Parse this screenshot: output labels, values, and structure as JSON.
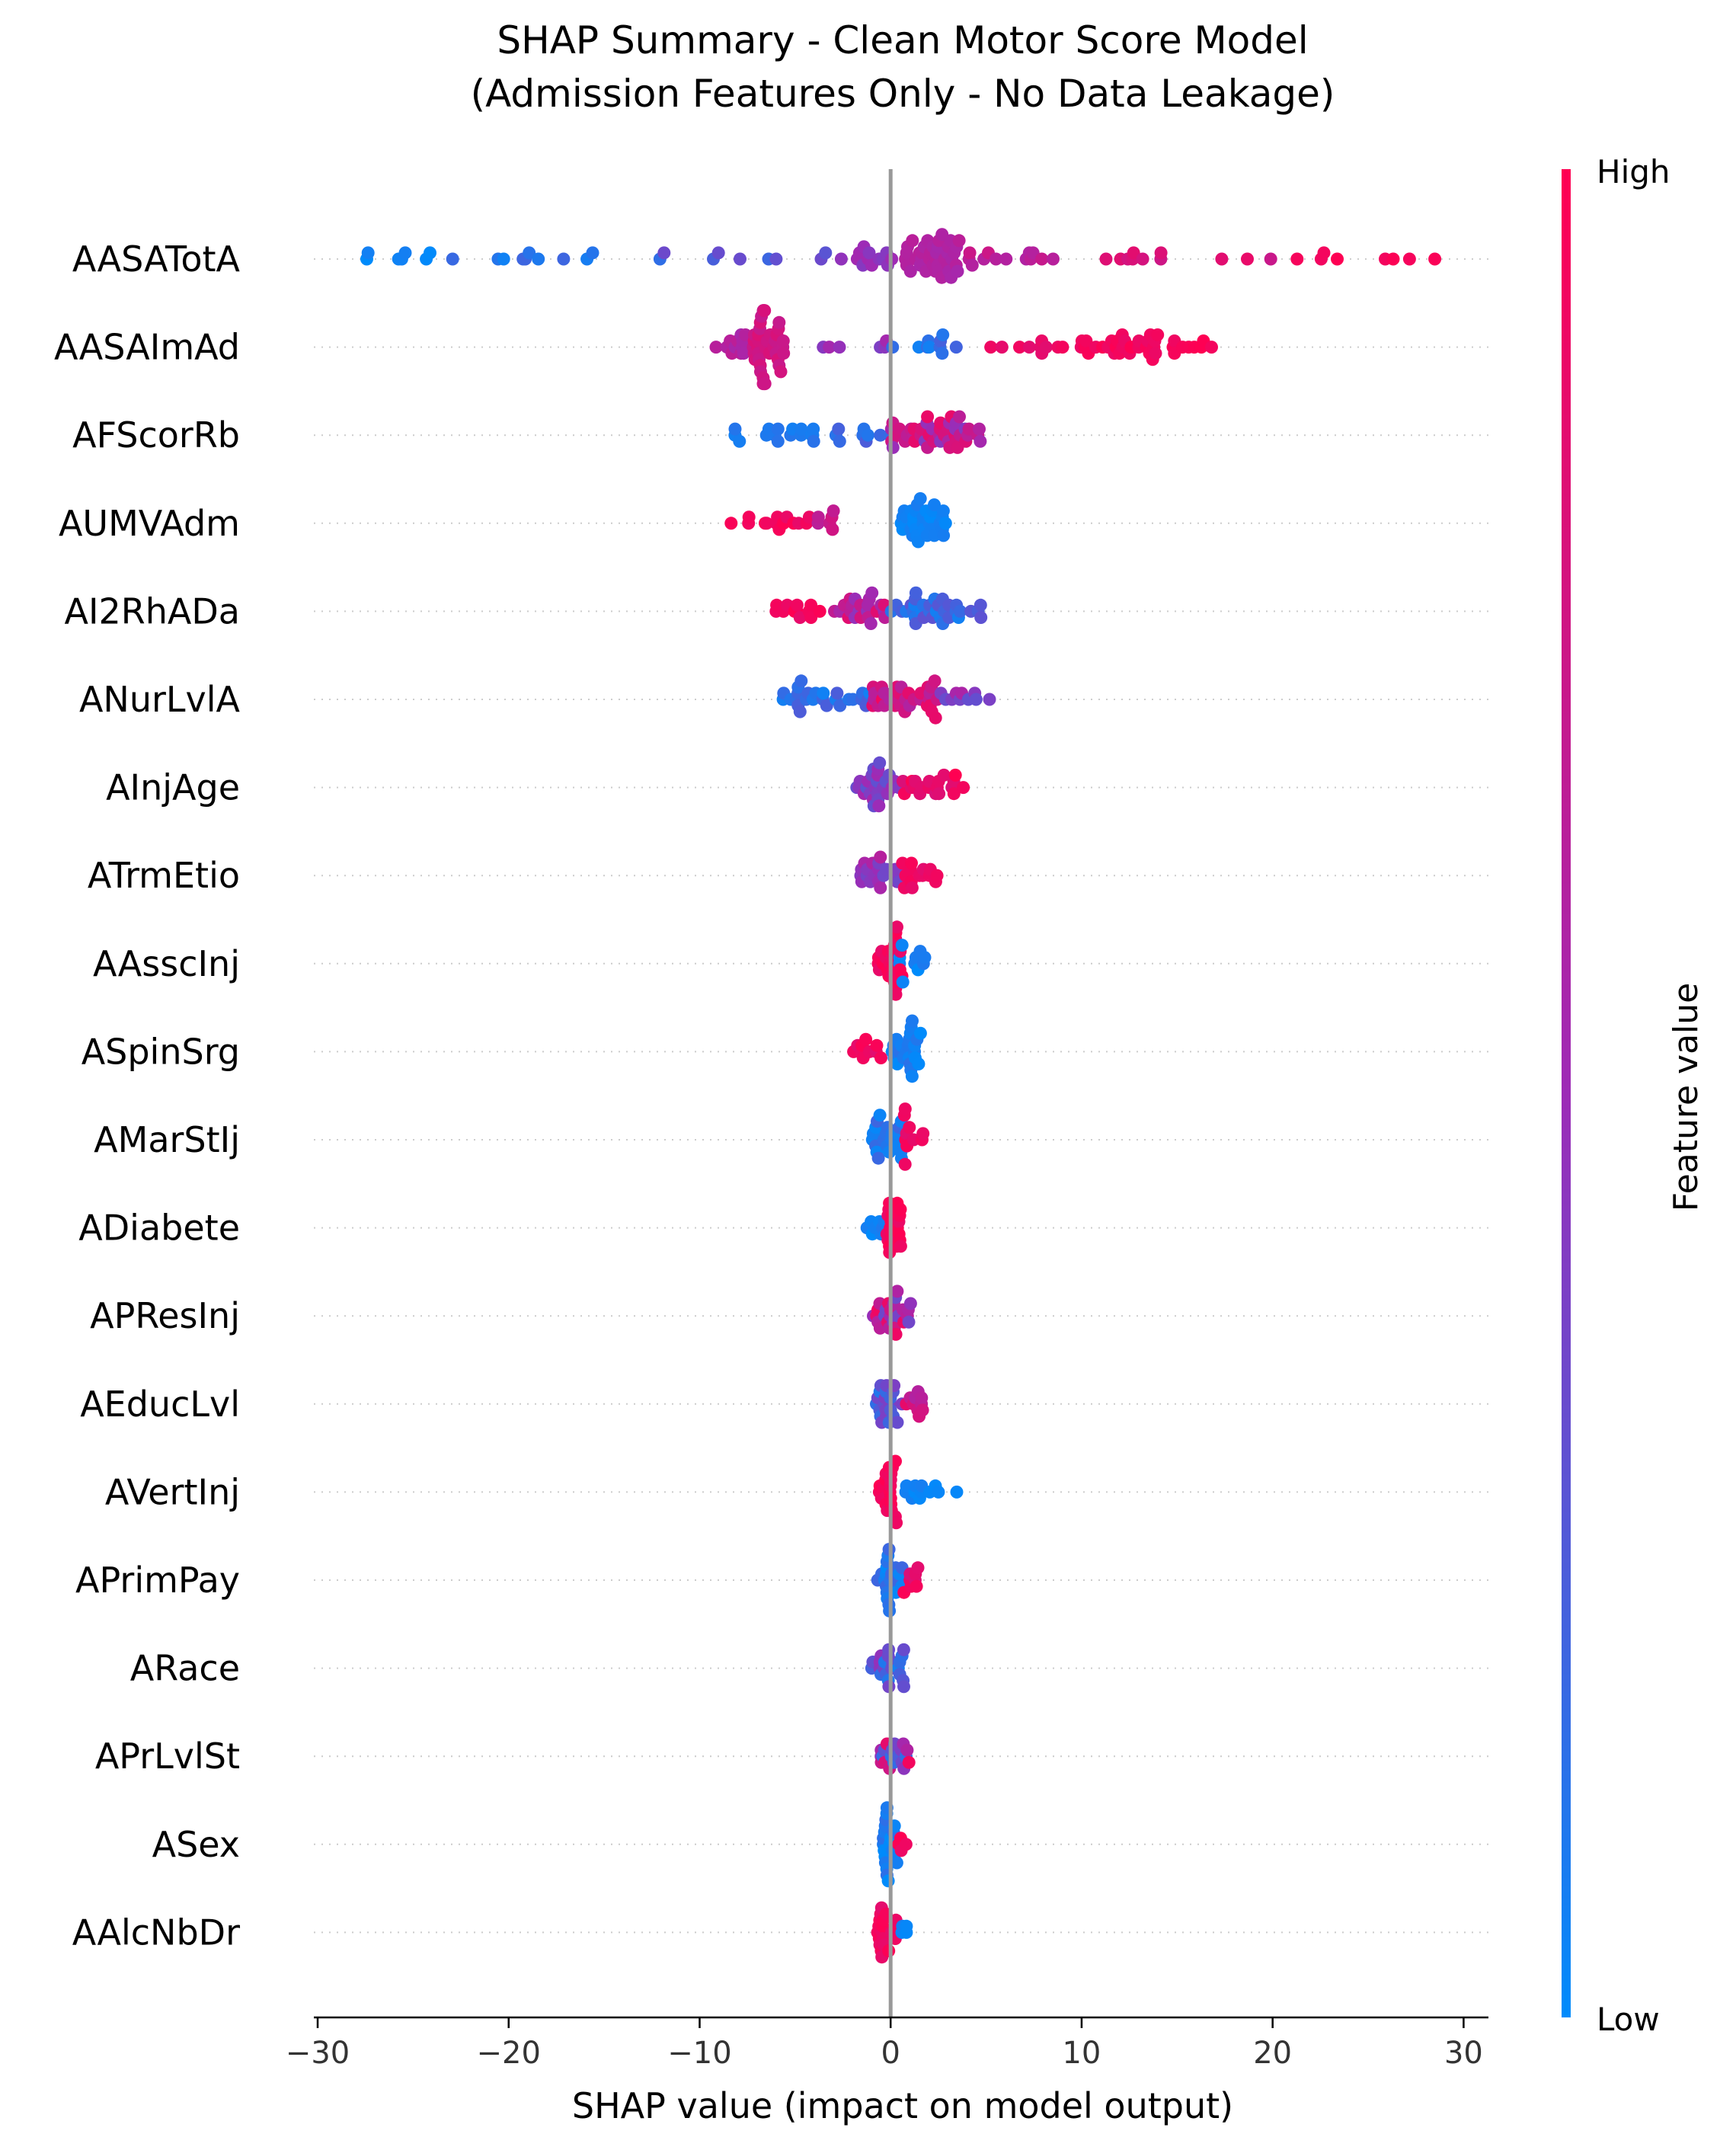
{
  "chart_data": {
    "type": "scatter",
    "subtype": "shap-beeswarm",
    "title": "SHAP Summary - Clean Motor Score Model",
    "subtitle": "(Admission Features Only - No Data Leakage)",
    "xlabel": "SHAP value (impact on model output)",
    "ylabel": "",
    "xlim": [
      -30.2,
      31.3
    ],
    "xticks": [
      -30,
      -20,
      -10,
      0,
      10,
      20,
      30
    ],
    "xtick_labels": [
      "−30",
      "−20",
      "−10",
      "0",
      "10",
      "20",
      "30"
    ],
    "grid": false,
    "zero_line": true,
    "colorbar": {
      "label": "Feature value",
      "high_label": "High",
      "low_label": "Low",
      "low_color": "#008bfb",
      "mid_color": "#9d2bb6",
      "high_color": "#ff0052"
    },
    "features": [
      {
        "name": "AASATotA",
        "segments": [
          [
            -27.5,
            -24,
            0.0,
            0.08,
            7
          ],
          [
            -24,
            -12,
            0.05,
            0.2,
            11
          ],
          [
            -12,
            -3,
            0.15,
            0.4,
            8
          ],
          [
            -3,
            0.5,
            0.4,
            0.55,
            14
          ],
          [
            0.5,
            3.5,
            0.55,
            0.65,
            40
          ],
          [
            3.5,
            10,
            0.6,
            0.75,
            14
          ],
          [
            10,
            20,
            0.7,
            0.9,
            11
          ],
          [
            20,
            28.6,
            0.9,
            1.0,
            8
          ]
        ]
      },
      {
        "name": "AASAImAd",
        "segments": [
          [
            -9.5,
            -7.5,
            0.55,
            0.7,
            12
          ],
          [
            -7.5,
            -5.5,
            0.7,
            0.82,
            38
          ],
          [
            -4.5,
            0,
            0.25,
            0.6,
            6
          ],
          [
            0,
            4,
            0.05,
            0.25,
            10
          ],
          [
            4,
            9,
            0.85,
            0.95,
            9
          ],
          [
            9,
            14,
            0.9,
            1.0,
            30
          ],
          [
            14,
            17,
            0.92,
            1.0,
            9
          ]
        ]
      },
      {
        "name": "AFScorRb",
        "segments": [
          [
            -8.3,
            -4,
            0.05,
            0.15,
            16
          ],
          [
            -4,
            0,
            0.1,
            0.25,
            9
          ],
          [
            0,
            4,
            0.4,
            0.9,
            40
          ],
          [
            4,
            4.8,
            0.5,
            0.75,
            5
          ]
        ]
      },
      {
        "name": "AUMVAdm",
        "segments": [
          [
            -8.8,
            -4,
            0.88,
            1.0,
            14
          ],
          [
            -4,
            -2.5,
            0.6,
            0.85,
            6
          ],
          [
            0.4,
            3,
            0.0,
            0.08,
            34
          ]
        ]
      },
      {
        "name": "AI2RhADa",
        "segments": [
          [
            -6,
            -3,
            0.85,
            1.0,
            12
          ],
          [
            -3,
            0,
            0.45,
            0.85,
            24
          ],
          [
            0,
            4.8,
            0.05,
            0.3,
            34
          ]
        ]
      },
      {
        "name": "ANurLvlA",
        "segments": [
          [
            -5.8,
            -1,
            0.05,
            0.25,
            26
          ],
          [
            -1,
            2.5,
            0.6,
            0.95,
            34
          ],
          [
            2.5,
            5.4,
            0.3,
            0.6,
            10
          ]
        ]
      },
      {
        "name": "AInjAge",
        "segments": [
          [
            -1.8,
            0.5,
            0.3,
            0.55,
            26
          ],
          [
            0.5,
            4,
            0.8,
            1.0,
            20
          ]
        ]
      },
      {
        "name": "ATrmEtio",
        "segments": [
          [
            -1.7,
            0.5,
            0.35,
            0.65,
            22
          ],
          [
            0.5,
            2.5,
            0.85,
            1.0,
            14
          ]
        ]
      },
      {
        "name": "AAsscInj",
        "segments": [
          [
            -0.7,
            0.6,
            0.88,
            1.0,
            24
          ],
          [
            0.3,
            1.8,
            0.0,
            0.1,
            10
          ]
        ]
      },
      {
        "name": "ASpinSrg",
        "segments": [
          [
            -2.0,
            -0.3,
            0.85,
            1.0,
            10
          ],
          [
            -0.3,
            1.8,
            0.0,
            0.15,
            24
          ]
        ]
      },
      {
        "name": "AMarStIj",
        "segments": [
          [
            -1.0,
            0.6,
            0.0,
            0.2,
            24
          ],
          [
            0.6,
            1.8,
            0.85,
            1.0,
            10
          ]
        ]
      },
      {
        "name": "ADiabete",
        "segments": [
          [
            -1.3,
            -0.2,
            0.0,
            0.1,
            8
          ],
          [
            -0.2,
            0.7,
            0.88,
            1.0,
            22
          ]
        ]
      },
      {
        "name": "APResInj",
        "segments": [
          [
            -1.1,
            1.1,
            0.3,
            0.95,
            26
          ]
        ]
      },
      {
        "name": "AEducLvl",
        "segments": [
          [
            -0.8,
            0.6,
            0.1,
            0.4,
            22
          ],
          [
            0.6,
            1.7,
            0.6,
            0.9,
            10
          ]
        ]
      },
      {
        "name": "AVertInj",
        "segments": [
          [
            -0.6,
            0.4,
            0.9,
            1.0,
            22
          ],
          [
            0.4,
            3.5,
            0.0,
            0.08,
            12
          ]
        ]
      },
      {
        "name": "APrimPay",
        "segments": [
          [
            -0.7,
            0.6,
            0.0,
            0.2,
            22
          ],
          [
            0.6,
            1.5,
            0.8,
            1.0,
            8
          ]
        ]
      },
      {
        "name": "ARace",
        "segments": [
          [
            -1.0,
            0.8,
            0.05,
            0.5,
            22
          ]
        ]
      },
      {
        "name": "APrLvlSt",
        "segments": [
          [
            -0.6,
            1.0,
            0.1,
            0.95,
            20
          ]
        ]
      },
      {
        "name": "ASex",
        "segments": [
          [
            -0.4,
            0.4,
            0.0,
            0.15,
            20
          ],
          [
            0.4,
            0.9,
            0.9,
            1.0,
            4
          ]
        ]
      },
      {
        "name": "AAlcNbDr",
        "segments": [
          [
            -0.7,
            0.5,
            0.85,
            1.0,
            20
          ],
          [
            0.5,
            0.9,
            0.0,
            0.1,
            4
          ]
        ]
      }
    ]
  }
}
